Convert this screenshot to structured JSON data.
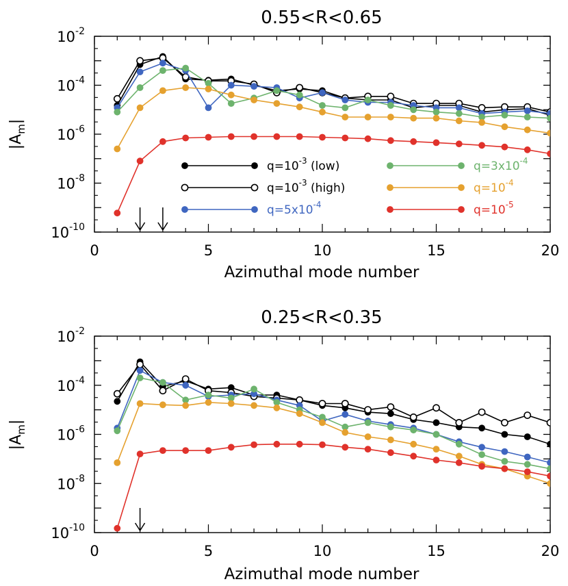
{
  "colors": {
    "low": "#000000",
    "high": "#000000",
    "q5e-4": "#3f66c0",
    "q3e-4": "#6db36d",
    "q1e-4": "#e5a12f",
    "q1e-5": "#e0322b"
  },
  "chart_data": [
    {
      "type": "line",
      "title": "0.55<R<0.65",
      "xlabel": "Azimuthal mode number",
      "ylabel": "|A_m|",
      "xlim": [
        0,
        20
      ],
      "ylim": [
        1e-10,
        0.01
      ],
      "yscale": "log",
      "x_ticks": [
        "0",
        "5",
        "10",
        "15",
        "20"
      ],
      "y_ticks": [
        {
          "base": "10",
          "exp": "-10"
        },
        {
          "base": "10",
          "exp": "-8"
        },
        {
          "base": "10",
          "exp": "-6"
        },
        {
          "base": "10",
          "exp": "-4"
        },
        {
          "base": "10",
          "exp": "-2"
        }
      ],
      "arrows_at": [
        2,
        3
      ],
      "legend_placement": "lower-middle",
      "x": [
        1,
        2,
        3,
        4,
        5,
        6,
        7,
        8,
        9,
        10,
        11,
        12,
        13,
        14,
        15,
        16,
        17,
        18,
        19,
        20
      ],
      "series": [
        {
          "key": "low",
          "name": "q=10^-3 (low)",
          "legend": {
            "pre": "q=10",
            "sup": "-3",
            "post": " (low)"
          },
          "marker": "filled",
          "values": [
            1.5e-05,
            0.0007,
            0.0015,
            0.00018,
            0.00016,
            0.00018,
            0.0001,
            6e-05,
            7e-05,
            6e-05,
            3e-05,
            2.5e-05,
            2.5e-05,
            1.2e-05,
            1.5e-05,
            1.5e-05,
            8e-06,
            1e-05,
            1.1e-05,
            6e-06
          ]
        },
        {
          "key": "high",
          "name": "q=10^-3 (high)",
          "legend": {
            "pre": "q=10",
            "sup": "-3",
            "post": " (high)"
          },
          "marker": "open",
          "values": [
            2.8e-05,
            0.001,
            0.0013,
            0.00022,
            0.00015,
            0.00015,
            0.00011,
            5e-05,
            8e-05,
            5e-05,
            3e-05,
            3.5e-05,
            3.5e-05,
            1.8e-05,
            1.8e-05,
            1.8e-05,
            1.2e-05,
            1.3e-05,
            1.3e-05,
            8e-06
          ]
        },
        {
          "key": "q5e-4",
          "name": "q=5x10^-4",
          "legend": {
            "pre": "q=5x10",
            "sup": "-4",
            "post": ""
          },
          "marker": "filled",
          "values": [
            1.2e-05,
            0.00035,
            0.0008,
            0.0004,
            1.2e-05,
            0.0001,
            9e-05,
            8e-05,
            3e-05,
            5e-05,
            2.5e-05,
            2e-05,
            2e-05,
            1.5e-05,
            1.2e-05,
            1.2e-05,
            7e-06,
            8e-06,
            9e-06,
            7e-06
          ]
        },
        {
          "key": "q3e-4",
          "name": "q=3x10^-4",
          "legend": {
            "pre": "q=3x10",
            "sup": "-4",
            "post": ""
          },
          "marker": "filled",
          "values": [
            8e-06,
            8e-05,
            0.0004,
            0.0005,
            0.00012,
            1.8e-05,
            3e-05,
            6e-05,
            4e-05,
            1.5e-05,
            1.2e-05,
            2.5e-05,
            1.5e-05,
            1e-05,
            8e-06,
            7e-06,
            5e-06,
            6e-06,
            5e-06,
            4.5e-06
          ]
        },
        {
          "key": "q1e-4",
          "name": "q=10^-4",
          "legend": {
            "pre": "q=10",
            "sup": "-4",
            "post": ""
          },
          "marker": "filled",
          "values": [
            2.5e-07,
            1.2e-05,
            6e-05,
            8e-05,
            7e-05,
            4e-05,
            2.5e-05,
            1.8e-05,
            1.3e-05,
            8e-06,
            5e-06,
            5e-06,
            5e-06,
            4.5e-06,
            4.5e-06,
            3.5e-06,
            3e-06,
            2e-06,
            1.5e-06,
            1.1e-06
          ]
        },
        {
          "key": "q1e-5",
          "name": "q=10^-5",
          "legend": {
            "pre": "q=10",
            "sup": "-5",
            "post": ""
          },
          "marker": "filled",
          "values": [
            6e-10,
            8e-08,
            5e-07,
            7e-07,
            7.5e-07,
            8e-07,
            8e-07,
            8e-07,
            8e-07,
            7.5e-07,
            7e-07,
            6.5e-07,
            5.5e-07,
            5e-07,
            4.5e-07,
            4e-07,
            3.5e-07,
            3e-07,
            2.3e-07,
            1.6e-07
          ]
        }
      ]
    },
    {
      "type": "line",
      "title": "0.25<R<0.35",
      "xlabel": "Azimuthal mode number",
      "ylabel": "|A_m|",
      "xlim": [
        0,
        20
      ],
      "ylim": [
        1e-10,
        0.01
      ],
      "yscale": "log",
      "x_ticks": [
        "0",
        "5",
        "10",
        "15",
        "20"
      ],
      "y_ticks": [
        {
          "base": "10",
          "exp": "-10"
        },
        {
          "base": "10",
          "exp": "-8"
        },
        {
          "base": "10",
          "exp": "-6"
        },
        {
          "base": "10",
          "exp": "-4"
        },
        {
          "base": "10",
          "exp": "-2"
        }
      ],
      "arrows_at": [
        2
      ],
      "x": [
        1,
        2,
        3,
        4,
        5,
        6,
        7,
        8,
        9,
        10,
        11,
        12,
        13,
        14,
        15,
        16,
        17,
        18,
        19,
        20
      ],
      "series": [
        {
          "key": "low",
          "marker": "filled",
          "values": [
            2.2e-05,
            0.0009,
            9e-05,
            0.00015,
            7e-05,
            8e-05,
            4e-05,
            4e-05,
            2.5e-05,
            1.5e-05,
            1.2e-05,
            8e-06,
            7e-06,
            4e-06,
            3e-06,
            2e-06,
            1.8e-06,
            1e-06,
            8e-07,
            4e-07
          ]
        },
        {
          "key": "high",
          "marker": "open",
          "values": [
            4.5e-05,
            0.0007,
            6e-05,
            0.00018,
            6e-05,
            5e-05,
            3.5e-05,
            3e-05,
            2.5e-05,
            1.8e-05,
            1.8e-05,
            1e-05,
            1.3e-05,
            5e-06,
            1.2e-05,
            3e-06,
            8e-06,
            3e-06,
            6e-06,
            3e-06
          ]
        },
        {
          "key": "q5e-4",
          "marker": "filled",
          "values": [
            1.8e-06,
            0.0004,
            0.00013,
            0.0001,
            3.5e-05,
            4e-05,
            4.5e-05,
            2.5e-05,
            1.5e-05,
            3.5e-06,
            6.5e-06,
            3.5e-06,
            2.5e-06,
            1.8e-06,
            1e-06,
            5e-07,
            3e-07,
            2e-07,
            1.2e-07,
            7e-08
          ]
        },
        {
          "key": "q3e-4",
          "marker": "filled",
          "values": [
            1.4e-06,
            0.0002,
            0.00013,
            2.5e-05,
            4e-05,
            3e-05,
            7e-05,
            2e-05,
            1e-05,
            5e-06,
            2e-06,
            3e-06,
            2e-06,
            1.5e-06,
            1e-06,
            4e-07,
            1.5e-07,
            8e-08,
            6e-08,
            4e-08
          ]
        },
        {
          "key": "q1e-4",
          "marker": "filled",
          "values": [
            7e-08,
            1.8e-05,
            1.6e-05,
            1.5e-05,
            2e-05,
            1.8e-05,
            1.5e-05,
            1.2e-05,
            7e-06,
            3e-06,
            1.2e-06,
            8e-07,
            6e-07,
            4e-07,
            2.5e-07,
            1.3e-07,
            6e-08,
            4e-08,
            2e-08,
            1e-08
          ]
        },
        {
          "key": "q1e-5",
          "marker": "filled",
          "values": [
            1.5e-10,
            1.6e-07,
            2.2e-07,
            2.2e-07,
            2.2e-07,
            3e-07,
            3.8e-07,
            4e-07,
            4e-07,
            3.8e-07,
            3e-07,
            2.5e-07,
            1.8e-07,
            1.3e-07,
            9e-08,
            7e-08,
            5e-08,
            4e-08,
            3e-08,
            2e-08
          ]
        }
      ]
    }
  ]
}
